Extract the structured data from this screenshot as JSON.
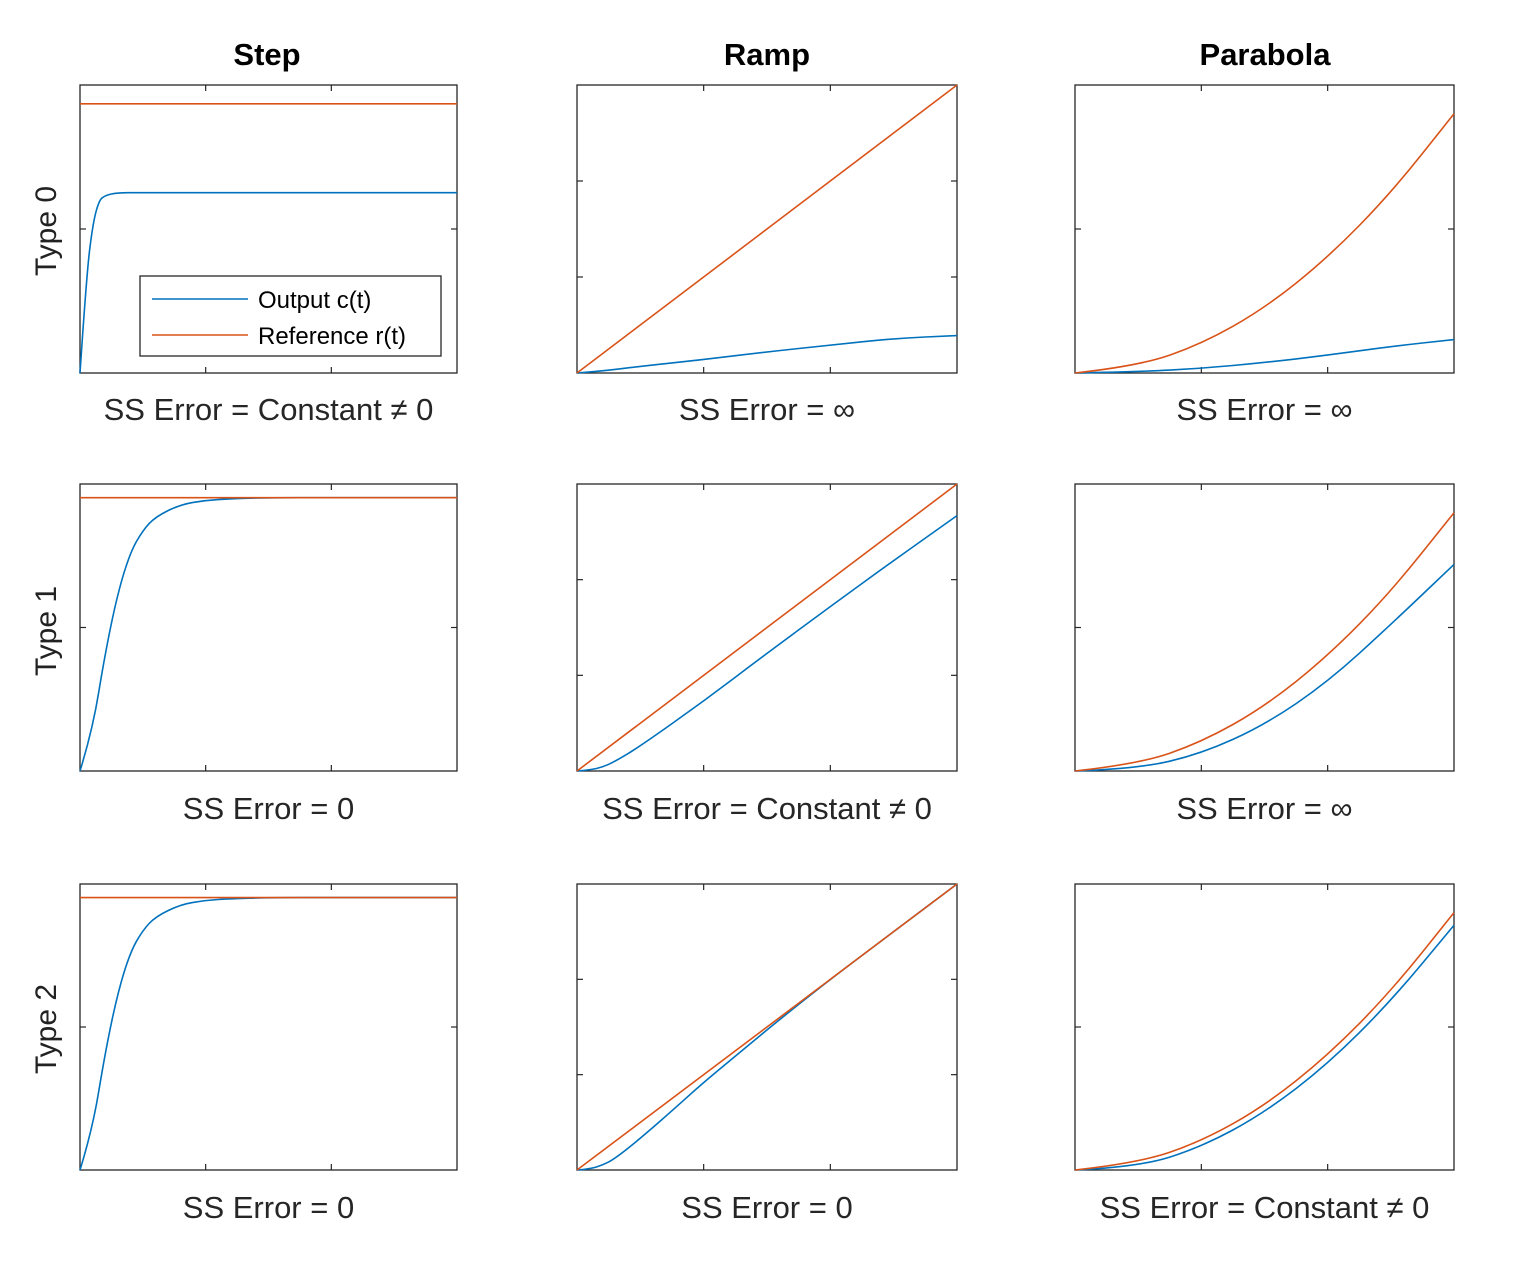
{
  "figure": {
    "column_titles": [
      "Step",
      "Ramp",
      "Parabola"
    ],
    "row_labels": [
      "Type 0",
      "Type 1",
      "Type 2"
    ]
  },
  "legend": {
    "placement": "lower-right of Type 0 / Step panel",
    "entries": [
      "Output c(t)",
      "Reference r(t)"
    ]
  },
  "colors": {
    "output": "#0072BD",
    "reference": "#D95319"
  },
  "chart_data": [
    {
      "type": "line",
      "row": "Type 0",
      "column": "Step",
      "caption": "SS Error = Constant ≠ 0",
      "xlim": [
        0,
        3
      ],
      "ylim": [
        0,
        1.07
      ],
      "series": [
        {
          "name": "Output c(t)",
          "x": [
            0,
            0.05,
            0.1,
            0.15,
            0.2,
            0.3,
            0.5,
            1.0,
            3.0
          ],
          "y": [
            0,
            0.35,
            0.55,
            0.64,
            0.66,
            0.67,
            0.67,
            0.67,
            0.67
          ]
        },
        {
          "name": "Reference r(t)",
          "x": [
            0,
            3
          ],
          "y": [
            1,
            1
          ]
        }
      ]
    },
    {
      "type": "line",
      "row": "Type 0",
      "column": "Ramp",
      "caption": "SS Error = ∞",
      "xlim": [
        0,
        3
      ],
      "ylim": [
        0,
        3
      ],
      "series": [
        {
          "name": "Output c(t)",
          "x": [
            0,
            0.2,
            0.5,
            1.0,
            1.5,
            2.0,
            2.5,
            3.0
          ],
          "y": [
            0,
            0.02,
            0.07,
            0.14,
            0.22,
            0.29,
            0.36,
            0.39
          ]
        },
        {
          "name": "Reference r(t)",
          "x": [
            0,
            3
          ],
          "y": [
            0,
            3
          ]
        }
      ]
    },
    {
      "type": "line",
      "row": "Type 0",
      "column": "Parabola",
      "caption": "SS Error = ∞",
      "xlim": [
        0,
        3
      ],
      "ylim": [
        0,
        5
      ],
      "series": [
        {
          "name": "Output c(t)",
          "x": [
            0,
            0.5,
            1.0,
            1.5,
            2.0,
            2.5,
            3.0
          ],
          "y": [
            0,
            0.02,
            0.08,
            0.18,
            0.31,
            0.46,
            0.58
          ]
        },
        {
          "name": "Reference r(t)",
          "x": [
            0,
            0.5,
            1.0,
            1.5,
            2.0,
            2.5,
            3.0
          ],
          "y": [
            0,
            0.12,
            0.5,
            1.12,
            2.0,
            3.12,
            4.5
          ]
        }
      ]
    },
    {
      "type": "line",
      "row": "Type 1",
      "column": "Step",
      "caption": "SS Error = 0",
      "xlim": [
        0,
        3
      ],
      "ylim": [
        0,
        1.05
      ],
      "series": [
        {
          "name": "Output c(t)",
          "x": [
            0,
            0.1,
            0.2,
            0.3,
            0.4,
            0.5,
            0.6,
            0.8,
            1.0,
            1.2,
            1.5,
            2.0,
            3.0
          ],
          "y": [
            0,
            0.15,
            0.43,
            0.65,
            0.8,
            0.88,
            0.93,
            0.975,
            0.99,
            0.996,
            1.0,
            1.0,
            1.0
          ]
        },
        {
          "name": "Reference r(t)",
          "x": [
            0,
            3
          ],
          "y": [
            1,
            1
          ]
        }
      ]
    },
    {
      "type": "line",
      "row": "Type 1",
      "column": "Ramp",
      "caption": "SS Error = Constant ≠ 0",
      "xlim": [
        0,
        3
      ],
      "ylim": [
        0,
        3
      ],
      "series": [
        {
          "name": "Output c(t)",
          "x": [
            0,
            0.1,
            0.2,
            0.3,
            0.5,
            1.0,
            1.5,
            2.0,
            2.5,
            3.0
          ],
          "y": [
            0,
            0.01,
            0.04,
            0.1,
            0.26,
            0.73,
            1.23,
            1.72,
            2.2,
            2.67
          ]
        },
        {
          "name": "Reference r(t)",
          "x": [
            0,
            3
          ],
          "y": [
            0,
            3
          ]
        }
      ]
    },
    {
      "type": "line",
      "row": "Type 1",
      "column": "Parabola",
      "caption": "SS Error = ∞",
      "xlim": [
        0,
        3
      ],
      "ylim": [
        0,
        5
      ],
      "series": [
        {
          "name": "Output c(t)",
          "x": [
            0,
            0.5,
            1.0,
            1.5,
            2.0,
            2.5,
            3.0
          ],
          "y": [
            0,
            0.04,
            0.3,
            0.8,
            1.55,
            2.55,
            3.6
          ]
        },
        {
          "name": "Reference r(t)",
          "x": [
            0,
            0.5,
            1.0,
            1.5,
            2.0,
            2.5,
            3.0
          ],
          "y": [
            0,
            0.12,
            0.5,
            1.12,
            2.0,
            3.12,
            4.5
          ]
        }
      ]
    },
    {
      "type": "line",
      "row": "Type 2",
      "column": "Step",
      "caption": "SS Error = 0",
      "xlim": [
        0,
        3
      ],
      "ylim": [
        0,
        1.05
      ],
      "series": [
        {
          "name": "Output c(t)",
          "x": [
            0,
            0.1,
            0.2,
            0.3,
            0.4,
            0.5,
            0.6,
            0.8,
            1.0,
            1.2,
            1.5,
            2.0,
            3.0
          ],
          "y": [
            0,
            0.15,
            0.43,
            0.65,
            0.8,
            0.88,
            0.93,
            0.975,
            0.99,
            0.996,
            1.0,
            1.0,
            1.0
          ]
        },
        {
          "name": "Reference r(t)",
          "x": [
            0,
            3
          ],
          "y": [
            1,
            1
          ]
        }
      ]
    },
    {
      "type": "line",
      "row": "Type 2",
      "column": "Ramp",
      "caption": "SS Error =  0",
      "xlim": [
        0,
        3
      ],
      "ylim": [
        0,
        3
      ],
      "series": [
        {
          "name": "Output c(t)",
          "x": [
            0,
            0.1,
            0.2,
            0.3,
            0.5,
            0.8,
            1.0,
            1.3,
            1.6,
            2.0,
            2.5,
            3.0
          ],
          "y": [
            0,
            0.01,
            0.05,
            0.12,
            0.33,
            0.68,
            0.92,
            1.25,
            1.58,
            2.0,
            2.5,
            3.0
          ]
        },
        {
          "name": "Reference r(t)",
          "x": [
            0,
            3
          ],
          "y": [
            0,
            3
          ]
        }
      ]
    },
    {
      "type": "line",
      "row": "Type 2",
      "column": "Parabola",
      "caption": "SS Error = Constant ≠ 0",
      "xlim": [
        0,
        3
      ],
      "ylim": [
        0,
        5
      ],
      "series": [
        {
          "name": "Output c(t)",
          "x": [
            0,
            0.5,
            1.0,
            1.5,
            2.0,
            2.5,
            3.0
          ],
          "y": [
            0,
            0.05,
            0.4,
            1.0,
            1.85,
            2.95,
            4.28
          ]
        },
        {
          "name": "Reference r(t)",
          "x": [
            0,
            0.5,
            1.0,
            1.5,
            2.0,
            2.5,
            3.0
          ],
          "y": [
            0,
            0.12,
            0.5,
            1.12,
            2.0,
            3.12,
            4.5
          ]
        }
      ]
    }
  ]
}
